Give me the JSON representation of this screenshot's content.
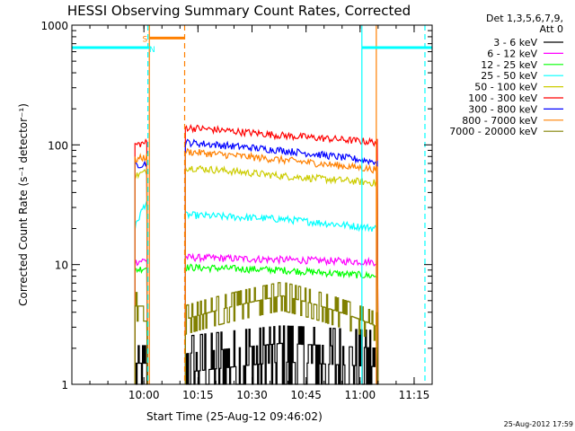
{
  "chart_data": {
    "type": "line",
    "title": "HESSI Observing Summary Count Rates, Corrected",
    "xlabel": "Start Time (25-Aug-12 09:46:02)",
    "ylabel": "Corrected Count Rate (s⁻¹ detector⁻¹)",
    "yscale": "log",
    "ylim": [
      1,
      1000
    ],
    "xlim_minutes": [
      -6,
      94
    ],
    "x_ticks": [
      {
        "label": "10:00",
        "min": 14
      },
      {
        "label": "10:15",
        "min": 29
      },
      {
        "label": "10:30",
        "min": 44
      },
      {
        "label": "10:45",
        "min": 59
      },
      {
        "label": "11:00",
        "min": 74
      },
      {
        "label": "11:15",
        "min": 89
      }
    ],
    "y_ticks": [
      {
        "label": "1",
        "value": 1
      },
      {
        "label": "10",
        "value": 10
      },
      {
        "label": "100",
        "value": 100
      },
      {
        "label": "1000",
        "value": 1000
      }
    ],
    "legend_header": [
      "Det 1,3,5,6,7,9,",
      "Att 0"
    ],
    "legend_position": "right",
    "series": [
      {
        "name": "3 - 6 keV",
        "color": "#000000",
        "style": "noisy",
        "seg1": [
          1.5,
          1.5
        ],
        "seg2": [
          1.8,
          2.2,
          2.0
        ]
      },
      {
        "name": "6 - 12 keV",
        "color": "#ff00ff",
        "style": "wave",
        "seg1": [
          10.5,
          11.0
        ],
        "seg2": [
          11.5,
          11.0,
          10.5
        ]
      },
      {
        "name": "12 - 25 keV",
        "color": "#00ff00",
        "style": "wave",
        "seg1": [
          9.0,
          9.5
        ],
        "seg2": [
          9.5,
          9.0,
          8.0
        ]
      },
      {
        "name": "25 - 50 keV",
        "color": "#00ffff",
        "style": "wave",
        "seg1": [
          20,
          35
        ],
        "seg2": [
          26,
          24,
          20
        ]
      },
      {
        "name": "50 - 100 keV",
        "color": "#cccc00",
        "style": "wave",
        "seg1": [
          55,
          60
        ],
        "seg2": [
          65,
          55,
          48
        ]
      },
      {
        "name": "100 - 300 keV",
        "color": "#ff0000",
        "style": "wave",
        "seg1": [
          100,
          105
        ],
        "seg2": [
          140,
          120,
          105
        ]
      },
      {
        "name": "300 - 800 keV",
        "color": "#0000ff",
        "style": "wave",
        "seg1": [
          68,
          70
        ],
        "seg2": [
          105,
          90,
          72
        ]
      },
      {
        "name": "800 - 7000 keV",
        "color": "#ff8000",
        "style": "wave",
        "seg1": [
          75,
          80
        ],
        "seg2": [
          88,
          75,
          62
        ]
      },
      {
        "name": "7000 - 20000 keV",
        "color": "#808000",
        "style": "step",
        "seg1": [
          4.5,
          4.5
        ],
        "seg2": [
          3.5,
          5.5,
          3.0
        ]
      }
    ],
    "data_segments_minutes": [
      [
        11.5,
        15.0
      ],
      [
        25.5,
        79.0
      ]
    ],
    "indicator_bars": [
      {
        "color": "#00ffff",
        "y": 650,
        "from": -6,
        "to": 15.5
      },
      {
        "color": "#00ffff",
        "y": 650,
        "from": 74.5,
        "to": 94
      },
      {
        "color": "#ff8000",
        "y": 780,
        "from": 15.5,
        "to": 25.3
      }
    ],
    "markers": [
      {
        "label": "S",
        "color": "#ff8000",
        "x": 14.3,
        "y": 780
      },
      {
        "label": "N",
        "color": "#00ffff",
        "x": 16.3,
        "y": 640
      }
    ],
    "vertical_lines": [
      {
        "x": 15.1,
        "color": "#00ffff",
        "dash": true
      },
      {
        "x": 15.5,
        "color": "#ff8000",
        "dash": false
      },
      {
        "x": 25.3,
        "color": "#ff8000",
        "dash": true
      },
      {
        "x": 74.5,
        "color": "#00ffff",
        "dash": false
      },
      {
        "x": 78.5,
        "color": "#ff8000",
        "dash": false
      },
      {
        "x": 92.0,
        "color": "#00ffff",
        "dash": true
      }
    ]
  },
  "footer": {
    "timestamp": "25-Aug-2012 17:59"
  }
}
